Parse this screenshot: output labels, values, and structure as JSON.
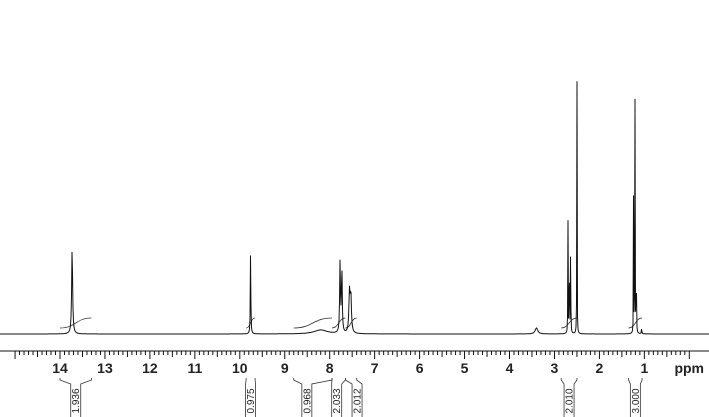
{
  "chart_data": {
    "type": "line",
    "title": "",
    "xlabel": "ppm",
    "ylabel": "",
    "x_reversed": true,
    "xlim": [
      15.0,
      0.0
    ],
    "ylim": [
      0,
      1.0
    ],
    "grid": false,
    "x_ticks": [
      14,
      13,
      12,
      11,
      10,
      9,
      8,
      7,
      6,
      5,
      4,
      3,
      2,
      1
    ],
    "peaks": [
      {
        "ppm": 13.73,
        "height": 0.26,
        "width": 0.025
      },
      {
        "ppm": 9.76,
        "height": 0.26,
        "width": 0.012
      },
      {
        "ppm": 7.77,
        "height": 0.21,
        "width": 0.02
      },
      {
        "ppm": 7.73,
        "height": 0.2,
        "width": 0.02
      },
      {
        "ppm": 7.56,
        "height": 0.12,
        "width": 0.03
      },
      {
        "ppm": 7.53,
        "height": 0.11,
        "width": 0.03
      },
      {
        "ppm": 8.2,
        "height": 0.012,
        "width": 0.35
      },
      {
        "ppm": 3.4,
        "height": 0.018,
        "width": 0.07
      },
      {
        "ppm": 2.7,
        "height": 0.39,
        "width": 0.007
      },
      {
        "ppm": 2.67,
        "height": 0.41,
        "width": 0.007
      },
      {
        "ppm": 2.64,
        "height": 0.38,
        "width": 0.007
      },
      {
        "ppm": 2.5,
        "height": 0.99,
        "width": 0.006
      },
      {
        "ppm": 1.24,
        "height": 0.49,
        "width": 0.006
      },
      {
        "ppm": 1.21,
        "height": 1.0,
        "width": 0.006
      },
      {
        "ppm": 1.18,
        "height": 0.48,
        "width": 0.006
      },
      {
        "ppm": 1.06,
        "height": 0.02,
        "width": 0.01
      }
    ],
    "integrals": [
      {
        "label": "1.936",
        "from": 14.0,
        "to": 13.3
      },
      {
        "label": "0.975",
        "from": 9.86,
        "to": 9.66
      },
      {
        "label": "0.968",
        "from": 8.8,
        "to": 7.95
      },
      {
        "label": "2.033",
        "from": 7.95,
        "to": 7.65
      },
      {
        "label": "2.012",
        "from": 7.65,
        "to": 7.4
      },
      {
        "label": "2.010",
        "from": 2.85,
        "to": 2.5
      },
      {
        "label": "3.000",
        "from": 1.35,
        "to": 1.05
      }
    ]
  }
}
